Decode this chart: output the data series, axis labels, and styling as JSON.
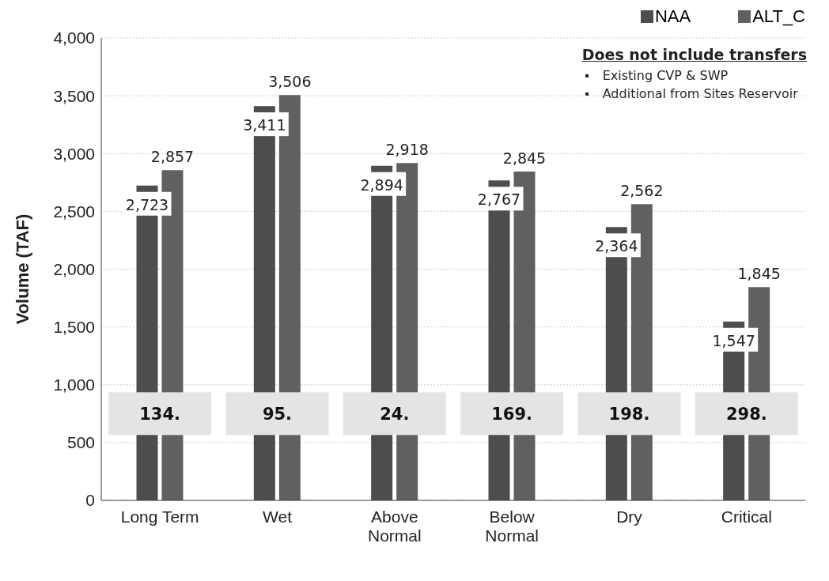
{
  "chart_data": {
    "type": "bar",
    "ylabel": "Volume (TAF)",
    "categories": [
      "Long Term",
      "Wet",
      "Above\nNormal",
      "Below\nNormal",
      "Dry",
      "Critical"
    ],
    "series": [
      {
        "name": "NAA",
        "color": "#4d4d4d",
        "values": [
          2723,
          3411,
          2894,
          2767,
          2364,
          1547
        ],
        "value_labels": [
          "2,723",
          "3,411",
          "2,894",
          "2,767",
          "2,364",
          "1,547"
        ]
      },
      {
        "name": "ALT_C",
        "color": "#606060",
        "values": [
          2857,
          3506,
          2918,
          2845,
          2562,
          1845
        ],
        "value_labels": [
          "2,857",
          "3,506",
          "2,918",
          "2,845",
          "2,562",
          "1,845"
        ]
      }
    ],
    "ylim": [
      0,
      4000
    ],
    "yticks": [
      {
        "value": 0,
        "label": "0"
      },
      {
        "value": 500,
        "label": "500"
      },
      {
        "value": 1000,
        "label": "1,000"
      },
      {
        "value": 1500,
        "label": "1,500"
      },
      {
        "value": 2000,
        "label": "2,000"
      },
      {
        "value": 2500,
        "label": "2,500"
      },
      {
        "value": 3000,
        "label": "3,000"
      },
      {
        "value": 3500,
        "label": "3,500"
      },
      {
        "value": 4000,
        "label": "4,000"
      }
    ],
    "grid": "y",
    "legend": "top right",
    "annotations": [
      "Does not include transfers",
      "Existing CVP & SWP",
      "Additional from Sites Reservoir",
      {
        "text": "134.",
        "x": "Long Term",
        "y": 750
      },
      {
        "text": "95.",
        "x": "Wet",
        "y": 750
      },
      {
        "text": "24.",
        "x": "Above\nNormal",
        "y": 750
      },
      {
        "text": "169.",
        "x": "Below\nNormal",
        "y": 750
      },
      {
        "text": "198.",
        "x": "Dry",
        "y": 750
      },
      {
        "text": "298.",
        "x": "Critical",
        "y": 750
      }
    ]
  }
}
